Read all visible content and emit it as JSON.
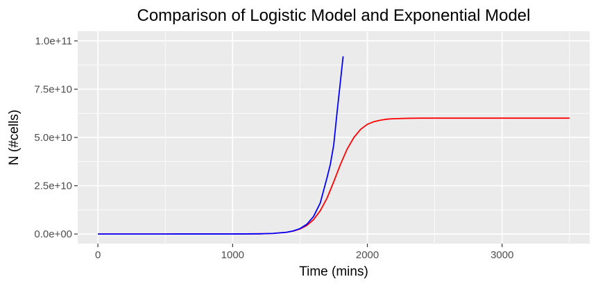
{
  "chart_data": {
    "type": "line",
    "title": "Comparison of Logistic Model and Exponential Model",
    "xlabel": "Time (mins)",
    "ylabel": "N (#cells)",
    "xlim": [
      -150,
      3650
    ],
    "ylim": [
      -5000000000.0,
      105000000000.0
    ],
    "x_ticks": [
      0,
      1000,
      2000,
      3000
    ],
    "x_tick_labels": [
      "0",
      "1000",
      "2000",
      "3000"
    ],
    "x_minor_ticks": [
      500,
      1500,
      2500,
      3500
    ],
    "y_ticks": [
      0,
      25000000000.0,
      50000000000.0,
      75000000000.0,
      100000000000.0
    ],
    "y_tick_labels": [
      "0.0e+00",
      "2.5e+10",
      "5.0e+10",
      "7.5e+10",
      "1.0e+11"
    ],
    "y_minor_ticks": [
      12500000000.0,
      37500000000.0,
      62500000000.0,
      87500000000.0
    ],
    "grid": true,
    "legend": "none",
    "background": "#ebebeb",
    "series": [
      {
        "color": "#ff0000",
        "x": [
          0,
          500,
          1000,
          1200,
          1300,
          1400,
          1450,
          1500,
          1550,
          1600,
          1650,
          1700,
          1750,
          1800,
          1850,
          1900,
          1950,
          2000,
          2050,
          2100,
          2150,
          2200,
          2300,
          2400,
          2500,
          2700,
          3000,
          3500
        ],
        "y": [
          0,
          0,
          10000000.0,
          100000000.0,
          300000000.0,
          900000000.0,
          1500000000.0,
          2600000000.0,
          4400000000.0,
          7400000000.0,
          12000000000.0,
          18500000000.0,
          27000000000.0,
          36000000000.0,
          44000000000.0,
          50000000000.0,
          54200000000.0,
          56800000000.0,
          58200000000.0,
          59000000000.0,
          59500000000.0,
          59700000000.0,
          59900000000.0,
          60000000000.0,
          60000000000.0,
          60000000000.0,
          60000000000.0,
          60000000000.0
        ]
      },
      {
        "color": "#0000ff",
        "x": [
          0,
          500,
          1000,
          1200,
          1300,
          1400,
          1450,
          1500,
          1550,
          1600,
          1650,
          1700,
          1725,
          1750,
          1775,
          1800,
          1820
        ],
        "y": [
          0,
          0,
          10000000.0,
          100000000.0,
          300000000.0,
          900000000.0,
          1600000000.0,
          2800000000.0,
          5000000000.0,
          9000000000.0,
          16000000000.0,
          29000000000.0,
          36000000000.0,
          46000000000.0,
          63000000000.0,
          79000000000.0,
          92000000000.0
        ]
      }
    ]
  }
}
